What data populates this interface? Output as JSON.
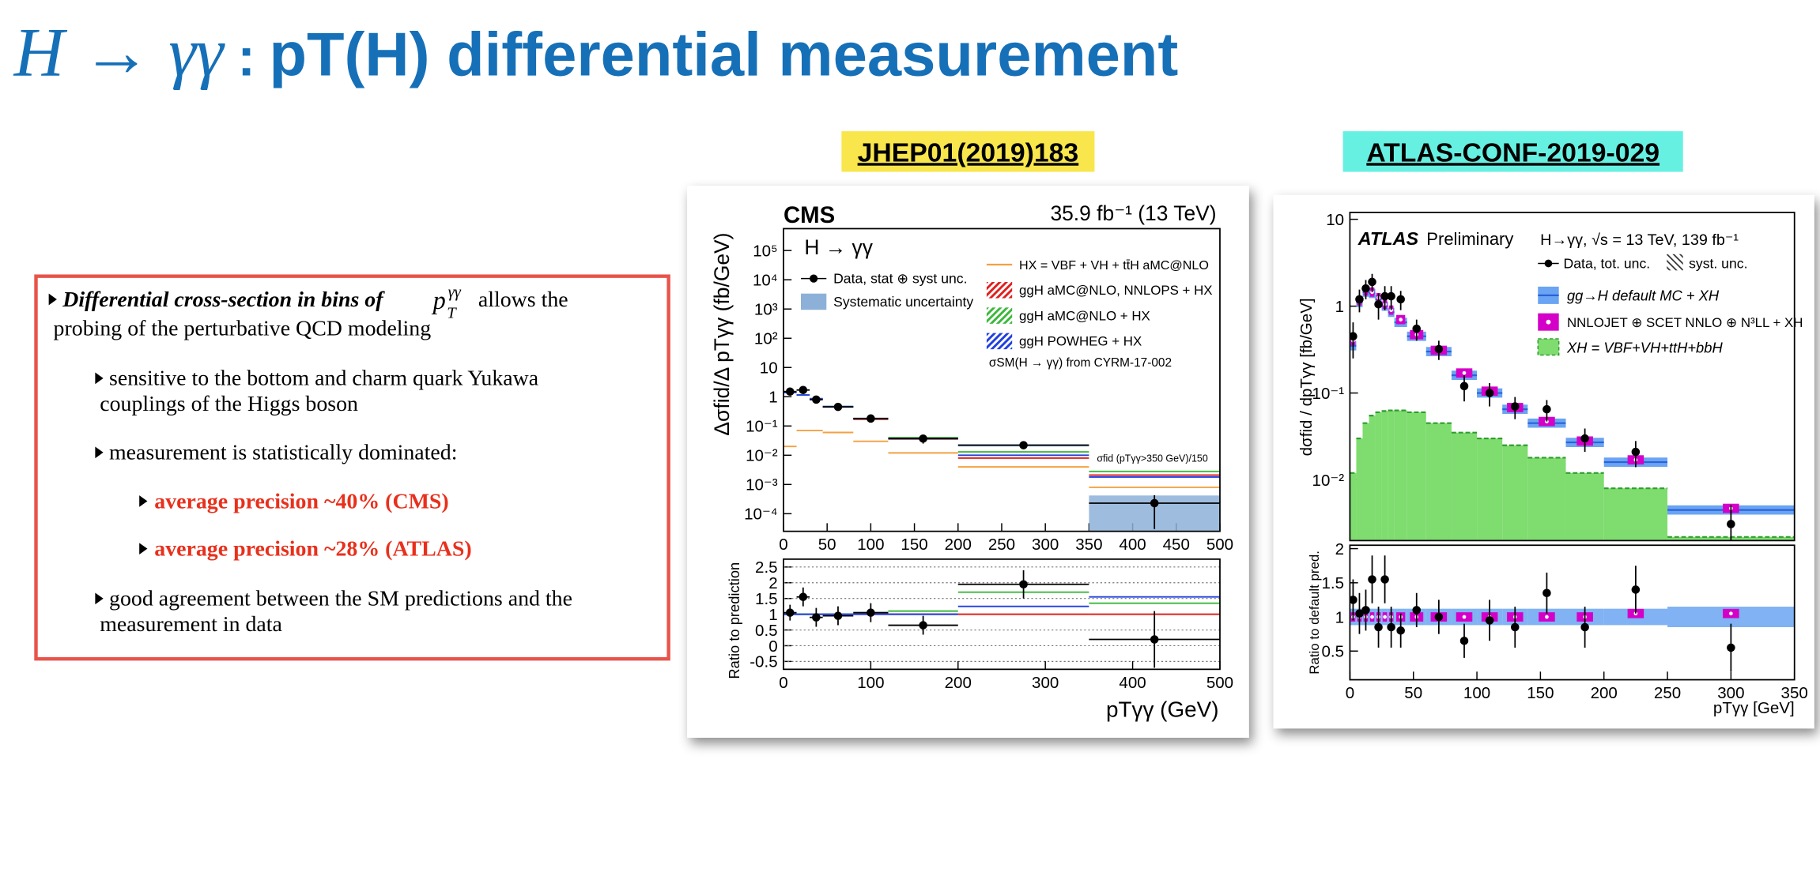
{
  "slide": {
    "title": {
      "math": "H → γγ",
      "separator": ":",
      "text": "pT(H) differential measurement",
      "color": "#1670b8"
    },
    "references": [
      {
        "text": "JHEP01(2019)183",
        "color": "#f8e64c"
      },
      {
        "text": "ATLAS-CONF-2019-029",
        "color": "#66f0e2"
      }
    ],
    "bullets": [
      {
        "emphasis": "Differential cross-section in bins of",
        "math": {
          "base": "p",
          "sub": "T",
          "sup": "γγ"
        },
        "lines": [
          "allows the",
          "probing of the perturbative QCD modeling"
        ]
      },
      {
        "lines": [
          "sensitive to the bottom and charm quark Yukawa",
          "couplings of the Higgs boson"
        ]
      },
      {
        "lines": [
          "measurement is statistically dominated:"
        ]
      },
      {
        "lines": [
          "average precision ~40% (CMS)"
        ],
        "color": "#e8301c"
      },
      {
        "lines": [
          "average precision ~28% (ATLAS)"
        ],
        "color": "#e8301c"
      },
      {
        "lines": [
          "good agreement between the SM predictions and the",
          "measurement in data"
        ]
      }
    ]
  },
  "chart_data": [
    {
      "type": "histogram",
      "title": "CMS",
      "subtitle": "35.9 fb⁻¹ (13 TeV)",
      "annotation": "H → γγ",
      "notes": [
        "σSM(H → γγ) from CYRM-17-002",
        "σfid (pTγγ>350 GeV)/150"
      ],
      "xlabel": "pTγγ (GeV)",
      "ylabel": "Δσfid/Δ pTγγ (fb/GeV)",
      "log_y": true,
      "bins": [
        0,
        15,
        30,
        45,
        80,
        120,
        200,
        350,
        500
      ],
      "xlim": [
        0,
        500
      ],
      "xticks": [
        0,
        50,
        100,
        150,
        200,
        250,
        300,
        350,
        400,
        450,
        500
      ],
      "ylim": [
        2.5e-05,
        560000
      ],
      "yticks": [
        {
          "value": 0.0001,
          "label": "10⁻⁴"
        },
        {
          "value": 0.001,
          "label": "10⁻³"
        },
        {
          "value": 0.01,
          "label": "10⁻²"
        },
        {
          "value": 0.1,
          "label": "10⁻¹"
        },
        1,
        10,
        {
          "value": 100,
          "label": "10²"
        },
        {
          "value": 1000,
          "label": "10³"
        },
        {
          "value": 10000,
          "label": "10⁴"
        },
        {
          "value": 100000,
          "label": "10⁵"
        }
      ],
      "series": [
        {
          "name": "Systematic uncertainty",
          "style": "range",
          "color": "#8db0d8",
          "low": [
            1.4,
            1.6,
            0.75,
            0.42,
            0.17,
            0.034,
            0.02,
            2.5e-05
          ],
          "high": [
            1.6,
            1.8,
            0.85,
            0.48,
            0.19,
            0.04,
            0.024,
            0.00042
          ]
        },
        {
          "name": "HX = VBF + VH + tt̄H aMC@NLO",
          "style": "line",
          "color": "#f5a040",
          "values": [
            0.02,
            0.07,
            0.07,
            0.06,
            0.03,
            0.012,
            0.004,
            0.0008
          ]
        },
        {
          "name": "ggH aMC@NLO, NNLOPS + HX",
          "style": "line",
          "color": "#e02020",
          "values": [
            1.4,
            1.15,
            0.85,
            0.45,
            0.17,
            0.036,
            0.008,
            0.0021
          ]
        },
        {
          "name": "ggH aMC@NLO + HX",
          "style": "line",
          "color": "#3cb83c",
          "values": [
            1.4,
            1.15,
            0.85,
            0.46,
            0.18,
            0.04,
            0.013,
            0.0028
          ]
        },
        {
          "name": "ggH POWHEG + HX",
          "style": "line",
          "color": "#2040e0",
          "values": [
            1.4,
            1.15,
            0.85,
            0.46,
            0.18,
            0.037,
            0.01,
            0.0018
          ]
        }
      ],
      "data": {
        "name": "Data, stat ⊕ syst unc.",
        "color": "#000000",
        "x_error_bars": true,
        "values": [
          1.5,
          1.7,
          0.8,
          0.45,
          0.18,
          0.037,
          0.022,
          0.00023
        ],
        "errors": [
          0.4,
          0.4,
          0.2,
          0.12,
          0.05,
          0.012,
          0.006,
          0.0002
        ]
      },
      "ratio": {
        "ylabel": "Ratio to prediction",
        "ylim": [
          -0.75,
          2.75
        ],
        "yticks": [
          -0.5,
          0,
          0.5,
          1,
          1.5,
          2,
          2.5
        ],
        "xticks": [
          0,
          100,
          200,
          300,
          400,
          500
        ],
        "grid": true,
        "series": [
          {
            "style": "line",
            "color": "#e02020",
            "values": [
              1,
              1,
              1,
              1,
              1,
              1,
              1,
              1
            ]
          },
          {
            "style": "line",
            "color": "#3cb83c",
            "values": [
              1,
              1,
              1,
              1,
              1.05,
              1.1,
              1.7,
              1.35
            ]
          },
          {
            "style": "line",
            "color": "#2040e0",
            "values": [
              1,
              1,
              1,
              1,
              1,
              1,
              1.25,
              1.55
            ]
          }
        ],
        "data": {
          "color": "#000000",
          "x_error_bars": true,
          "values": [
            1.05,
            1.55,
            0.9,
            0.95,
            1.05,
            0.65,
            1.95,
            0.2
          ],
          "errors": [
            0.25,
            0.3,
            0.3,
            0.3,
            0.3,
            0.3,
            0.45,
            0.9
          ]
        }
      }
    },
    {
      "type": "histogram",
      "title": "ATLAS",
      "subtitle": "Preliminary",
      "annotation": "H→γγ, √s = 13 TeV, 139 fb⁻¹",
      "xlabel": "pTγγ [GeV]",
      "ylabel": "dσfid / dpTγγ [fb/GeV]",
      "log_y": true,
      "bins": [
        0,
        5,
        10,
        15,
        20,
        25,
        30,
        35,
        45,
        60,
        80,
        100,
        120,
        140,
        170,
        200,
        250,
        350
      ],
      "xlim": [
        0,
        350
      ],
      "ylim": [
        0.002,
        12
      ],
      "yticks": [
        {
          "value": 0.01,
          "label": "10⁻²"
        },
        {
          "value": 0.1,
          "label": "10⁻¹"
        },
        1,
        10
      ],
      "series": [
        {
          "name": "XH = VBF+VH+ttH+bbH",
          "style": "fill",
          "color": "#7fdc6f",
          "values": [
            0.012,
            0.03,
            0.045,
            0.055,
            0.06,
            0.062,
            0.063,
            0.063,
            0.06,
            0.045,
            0.035,
            0.03,
            0.025,
            0.018,
            0.012,
            0.008,
            0.0022
          ]
        },
        {
          "name": "gg→H default MC + XH",
          "style": "band",
          "color": "#2a62d8",
          "band_color": "#6aa4f2",
          "values": [
            0.35,
            1.1,
            1.45,
            1.4,
            1.2,
            1.0,
            0.85,
            0.65,
            0.45,
            0.3,
            0.16,
            0.1,
            0.065,
            0.045,
            0.027,
            0.016,
            0.0045
          ]
        },
        {
          "name": "NNLOJET ⊕ SCET NNLO ⊕ N³LL + XH",
          "style": "marker",
          "color": "#d400c8",
          "values": [
            0.4,
            1.15,
            1.5,
            1.45,
            1.25,
            1.05,
            0.9,
            0.7,
            0.47,
            0.31,
            0.17,
            0.105,
            0.068,
            0.047,
            0.028,
            0.017,
            0.0047
          ]
        }
      ],
      "syst_label": "syst. unc.",
      "data": {
        "name": "Data, tot. unc.",
        "color": "#000000",
        "x_error_bars": false,
        "values": [
          0.45,
          1.2,
          1.6,
          1.9,
          1.05,
          1.3,
          1.3,
          1.2,
          0.55,
          0.32,
          0.12,
          0.1,
          0.07,
          0.065,
          0.03,
          0.021,
          0.0031
        ],
        "errors": [
          0.2,
          0.35,
          0.4,
          0.45,
          0.35,
          0.4,
          0.4,
          0.3,
          0.15,
          0.08,
          0.04,
          0.03,
          0.02,
          0.018,
          0.009,
          0.007,
          0.002
        ]
      },
      "ratio": {
        "ylabel": "Ratio to default pred.",
        "ylim": [
          0.08,
          2.05
        ],
        "yticks": [
          0.5,
          1,
          1.5,
          2
        ],
        "xticks": [
          0,
          50,
          100,
          150,
          200,
          250,
          300,
          350
        ],
        "grid": false,
        "series": [
          {
            "style": "range",
            "color": "#6aa4f2",
            "low": [
              0.88,
              0.88,
              0.88,
              0.88,
              0.88,
              0.88,
              0.88,
              0.88,
              0.88,
              0.88,
              0.88,
              0.88,
              0.88,
              0.88,
              0.88,
              0.88,
              0.85
            ],
            "high": [
              1.12,
              1.12,
              1.12,
              1.12,
              1.12,
              1.12,
              1.12,
              1.12,
              1.12,
              1.12,
              1.12,
              1.12,
              1.12,
              1.12,
              1.12,
              1.12,
              1.15
            ]
          },
          {
            "style": "marker",
            "color": "#d400c8",
            "values": [
              1,
              1,
              1,
              1,
              1,
              1,
              1,
              1,
              1,
              1,
              1,
              1,
              1,
              1,
              1,
              1.05,
              1.05
            ]
          }
        ],
        "data": {
          "color": "#000000",
          "x_error_bars": false,
          "values": [
            1.25,
            1.05,
            1.1,
            1.55,
            0.85,
            1.55,
            0.85,
            0.8,
            1.1,
            1.0,
            0.65,
            0.95,
            0.85,
            1.35,
            0.85,
            1.4,
            0.55
          ],
          "errors": [
            0.3,
            0.3,
            0.3,
            0.35,
            0.3,
            0.35,
            0.3,
            0.25,
            0.25,
            0.25,
            0.25,
            0.3,
            0.3,
            0.3,
            0.3,
            0.35,
            0.35
          ]
        }
      }
    }
  ]
}
